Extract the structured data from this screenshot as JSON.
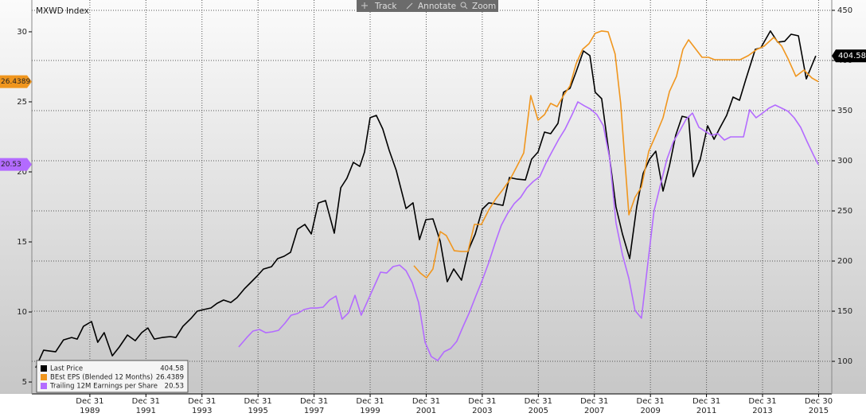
{
  "toolbar": {
    "buttons": [
      "Track",
      "Annotate",
      "Zoom"
    ]
  },
  "chart_data": {
    "type": "line",
    "title": "MXWD Index",
    "xlim": [
      1987.93,
      2016.47
    ],
    "xticks": [
      {
        "value": 1990,
        "label": "Dec 31",
        "sublabel": "1989"
      },
      {
        "value": 1992,
        "label": "Dec 31",
        "sublabel": "1991"
      },
      {
        "value": 1994,
        "label": "Dec 31",
        "sublabel": "1993"
      },
      {
        "value": 1996,
        "label": "Dec 31",
        "sublabel": "1995"
      },
      {
        "value": 1998,
        "label": "Dec 31",
        "sublabel": "1997"
      },
      {
        "value": 2000,
        "label": "Dec 31",
        "sublabel": "1999"
      },
      {
        "value": 2002,
        "label": "Dec 31",
        "sublabel": "2001"
      },
      {
        "value": 2004,
        "label": "Dec 31",
        "sublabel": "2003"
      },
      {
        "value": 2006,
        "label": "Dec 31",
        "sublabel": "2005"
      },
      {
        "value": 2008,
        "label": "Dec 31",
        "sublabel": "2007"
      },
      {
        "value": 2010,
        "label": "Dec 31",
        "sublabel": "2009"
      },
      {
        "value": 2012,
        "label": "Dec 31",
        "sublabel": "2011"
      },
      {
        "value": 2014,
        "label": "Dec 31",
        "sublabel": "2013"
      },
      {
        "value": 2016,
        "label": "Dec 30",
        "sublabel": "2015"
      }
    ],
    "ylim": [
      4.15,
      32.27
    ],
    "yticks": [
      5,
      10,
      15,
      20,
      25,
      30
    ],
    "y2lim": [
      67.5,
      460.3
    ],
    "y2ticks": [
      100,
      150,
      200,
      250,
      300,
      350,
      400,
      450
    ],
    "grid": true,
    "legend": "bottom-left",
    "series": [
      {
        "name": "Last Price",
        "color": "#000000",
        "axis": "y2",
        "x": [
          1988.07,
          1988.35,
          1988.78,
          1989.06,
          1989.35,
          1989.55,
          1989.77,
          1990.06,
          1990.28,
          1990.51,
          1990.8,
          1991.05,
          1991.34,
          1991.62,
          1991.85,
          1992.07,
          1992.3,
          1992.58,
          1992.87,
          1993.07,
          1993.32,
          1993.61,
          1993.83,
          1994.06,
          1994.32,
          1994.54,
          1994.77,
          1995.03,
          1995.25,
          1995.51,
          1995.74,
          1995.96,
          1996.19,
          1996.48,
          1996.7,
          1996.93,
          1997.16,
          1997.41,
          1997.67,
          1997.9,
          1998.15,
          1998.41,
          1998.72,
          1998.95,
          1999.17,
          1999.4,
          1999.63,
          1999.8,
          2000.0,
          2000.22,
          2000.45,
          2000.68,
          2000.93,
          2001.28,
          2001.53,
          2001.76,
          2001.99,
          2002.24,
          2002.5,
          2002.75,
          2002.98,
          2003.26,
          2003.52,
          2003.75,
          2004.0,
          2004.23,
          2004.46,
          2004.74,
          2004.97,
          2005.25,
          2005.54,
          2005.76,
          2005.99,
          2006.22,
          2006.44,
          2006.7,
          2006.9,
          2007.13,
          2007.35,
          2007.61,
          2007.84,
          2008.03,
          2008.26,
          2008.55,
          2008.77,
          2009.0,
          2009.26,
          2009.51,
          2009.74,
          2009.97,
          2010.19,
          2010.45,
          2010.68,
          2010.9,
          2011.13,
          2011.36,
          2011.53,
          2011.78,
          2012.04,
          2012.27,
          2012.49,
          2012.72,
          2012.95,
          2013.18,
          2013.4,
          2013.74,
          2013.94,
          2014.28,
          2014.54,
          2014.79,
          2015.02,
          2015.28,
          2015.56,
          2015.9
        ],
        "values": [
          93.6,
          111.1,
          109.5,
          121.4,
          123.8,
          122.2,
          134.9,
          139.7,
          119,
          128.6,
          105.5,
          114.3,
          126.2,
          120.6,
          128.6,
          133.3,
          122.2,
          123.8,
          124.6,
          123.8,
          134.9,
          142.8,
          150,
          151.6,
          153.2,
          157.9,
          161.1,
          158.7,
          163.5,
          172.2,
          178.6,
          184.9,
          192,
          194.4,
          202.4,
          204.8,
          208.7,
          231.7,
          236.5,
          227,
          257.9,
          260.3,
          227.8,
          273,
          282.5,
          298.4,
          294.4,
          308.7,
          342.9,
          345.2,
          331.7,
          310.3,
          290.5,
          252.4,
          258,
          221.4,
          241.3,
          242.1,
          219.8,
          179.4,
          192.1,
          180.9,
          211.9,
          227,
          251.6,
          258,
          257.1,
          255.5,
          283.3,
          281.7,
          280.9,
          301.6,
          308.7,
          328.6,
          327,
          337.3,
          368.3,
          372.2,
          388.9,
          409.5,
          404.8,
          368.3,
          361.9,
          301.6,
          254,
          227,
          202.4,
          254,
          287.3,
          301.6,
          309.5,
          269.8,
          295.2,
          325.4,
          344.4,
          342.8,
          284.1,
          301.6,
          334.9,
          321.4,
          333.3,
          345.2,
          363.5,
          360.3,
          380.9,
          411.1,
          412.7,
          429.4,
          418.3,
          419.1,
          426.2,
          424.6,
          381.7,
          404.58
        ]
      },
      {
        "name": "BEst EPS (Blended 12 Months)",
        "color": "#f0961e",
        "axis": "y",
        "x": [
          2001.56,
          2001.79,
          2002.01,
          2002.24,
          2002.5,
          2002.72,
          2003.0,
          2003.26,
          2003.49,
          2003.72,
          2003.97,
          2004.23,
          2004.48,
          2004.74,
          2005.0,
          2005.25,
          2005.48,
          2005.73,
          2005.99,
          2006.22,
          2006.44,
          2006.67,
          2006.9,
          2007.13,
          2007.35,
          2007.58,
          2007.81,
          2008.03,
          2008.26,
          2008.49,
          2008.74,
          2008.94,
          2009.23,
          2009.45,
          2009.68,
          2009.94,
          2010.19,
          2010.45,
          2010.68,
          2010.93,
          2011.16,
          2011.36,
          2011.58,
          2011.84,
          2012.07,
          2012.29,
          2012.52,
          2012.75,
          2012.98,
          2013.2,
          2013.49,
          2013.8,
          2014.06,
          2014.4,
          2014.68,
          2014.91,
          2015.19,
          2015.48,
          2015.76,
          2015.99
        ],
        "values": [
          13.3,
          12.78,
          12.44,
          13.07,
          15.74,
          15.45,
          14.37,
          14.32,
          14.32,
          16.25,
          16.25,
          17.27,
          18.07,
          18.75,
          19.49,
          20.45,
          21.36,
          25.45,
          23.69,
          24.09,
          24.89,
          24.66,
          25.45,
          26.14,
          27.73,
          28.75,
          29.15,
          29.89,
          30.06,
          30.0,
          28.41,
          24.89,
          16.93,
          18.18,
          18.92,
          21.48,
          22.61,
          23.86,
          25.74,
          26.82,
          28.75,
          29.43,
          28.86,
          28.18,
          28.18,
          28.01,
          28.01,
          28.01,
          28.01,
          28.01,
          28.3,
          28.75,
          28.98,
          29.6,
          28.98,
          28.07,
          26.82,
          27.27,
          26.7,
          26.4389
        ]
      },
      {
        "name": "Trailing 12M Earnings per Share",
        "color": "#b36bff",
        "axis": "y",
        "x": [
          1995.31,
          1995.6,
          1995.82,
          1996.05,
          1996.28,
          1996.5,
          1996.73,
          1996.96,
          1997.18,
          1997.41,
          1997.64,
          1997.87,
          1998.09,
          1998.32,
          1998.55,
          1998.78,
          1999.0,
          1999.23,
          1999.46,
          1999.68,
          1999.91,
          2000.14,
          2000.37,
          2000.59,
          2000.82,
          2001.05,
          2001.28,
          2001.5,
          2001.73,
          2001.96,
          2002.18,
          2002.41,
          2002.64,
          2002.87,
          2003.09,
          2003.32,
          2003.55,
          2003.77,
          2004.0,
          2004.23,
          2004.46,
          2004.68,
          2004.91,
          2005.14,
          2005.37,
          2005.59,
          2005.82,
          2006.05,
          2006.27,
          2006.5,
          2006.73,
          2006.96,
          2007.18,
          2007.41,
          2007.64,
          2007.86,
          2008.09,
          2008.32,
          2008.55,
          2008.77,
          2009.0,
          2009.23,
          2009.45,
          2009.68,
          2009.91,
          2010.13,
          2010.36,
          2010.59,
          2010.82,
          2011.04,
          2011.27,
          2011.5,
          2011.73,
          2011.95,
          2012.18,
          2012.41,
          2012.64,
          2012.86,
          2013.09,
          2013.32,
          2013.54,
          2013.77,
          2014.0,
          2014.23,
          2014.45,
          2014.68,
          2014.91,
          2015.13,
          2015.36,
          2015.59,
          2015.82,
          2015.99
        ],
        "values": [
          7.5,
          8.18,
          8.64,
          8.75,
          8.52,
          8.58,
          8.69,
          9.2,
          9.77,
          9.89,
          10.17,
          10.28,
          10.28,
          10.34,
          10.85,
          11.14,
          9.49,
          9.94,
          11.19,
          9.77,
          10.79,
          11.82,
          12.84,
          12.78,
          13.24,
          13.35,
          12.95,
          12.1,
          10.68,
          7.84,
          6.82,
          6.53,
          7.16,
          7.39,
          7.9,
          8.98,
          10.0,
          11.14,
          12.27,
          13.52,
          14.94,
          16.19,
          17.05,
          17.73,
          18.18,
          18.86,
          19.32,
          19.66,
          20.62,
          21.48,
          22.33,
          23.07,
          23.98,
          25.0,
          24.72,
          24.49,
          24.09,
          23.3,
          20.91,
          16.36,
          14.09,
          12.39,
          10.11,
          9.55,
          13.52,
          17.22,
          19.09,
          20.91,
          22.16,
          22.9,
          23.75,
          24.2,
          23.18,
          22.9,
          22.61,
          22.73,
          22.27,
          22.5,
          22.5,
          22.5,
          24.43,
          23.86,
          24.2,
          24.55,
          24.77,
          24.55,
          24.32,
          23.86,
          23.18,
          22.16,
          21.19,
          20.53
        ]
      }
    ]
  }
}
